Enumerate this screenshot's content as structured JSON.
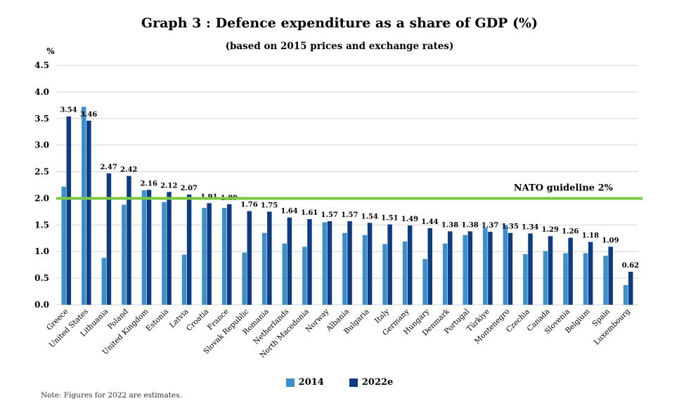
{
  "chart_data": {
    "type": "bar",
    "title": "Graph 3 : Defence expenditure as a share of GDP (%)",
    "subtitle": "(based on 2015 prices and exchange rates)",
    "ylabel": "%",
    "ylim": [
      0,
      4.5
    ],
    "yticks": [
      "0.0",
      "0.5",
      "1.0",
      "1.5",
      "2.0",
      "2.5",
      "3.0",
      "3.5",
      "4.0",
      "4.5"
    ],
    "grid": true,
    "categories": [
      "Greece",
      "United States",
      "Lithuania",
      "Poland",
      "United Kingdom",
      "Estonia",
      "Latvia",
      "Croatia",
      "France",
      "Slovak Republic",
      "Romania",
      "Netherlands",
      "North Macedonia",
      "Norway",
      "Albania",
      "Bulgaria",
      "Italy",
      "Germany",
      "Hungary",
      "Denmark",
      "Portugal",
      "Türkiye",
      "Montenegro",
      "Czechia",
      "Canada",
      "Slovenia",
      "Belgium",
      "Spain",
      "Luxembourg"
    ],
    "series": [
      {
        "name": "2014",
        "color": "#3d8fc9",
        "values": [
          2.22,
          3.72,
          0.88,
          1.88,
          2.15,
          1.93,
          0.94,
          1.82,
          1.82,
          0.98,
          1.35,
          1.15,
          1.09,
          1.55,
          1.35,
          1.31,
          1.14,
          1.19,
          0.86,
          1.15,
          1.31,
          1.45,
          1.5,
          0.95,
          1.01,
          0.97,
          0.97,
          0.92,
          0.37
        ]
      },
      {
        "name": "2022e",
        "color": "#0d3d80",
        "values": [
          3.54,
          3.46,
          2.47,
          2.42,
          2.16,
          2.12,
          2.07,
          1.91,
          1.89,
          1.76,
          1.75,
          1.64,
          1.61,
          1.57,
          1.57,
          1.54,
          1.51,
          1.49,
          1.44,
          1.38,
          1.38,
          1.37,
          1.35,
          1.34,
          1.29,
          1.26,
          1.18,
          1.09,
          0.62
        ],
        "labels": [
          "3.54",
          "3.46",
          "2.47",
          "2.42",
          "2.16",
          "2.12",
          "2.07",
          "1.91",
          "1.89",
          "1.76",
          "1.75",
          "1.64",
          "1.61",
          "1.57",
          "1.57",
          "1.54",
          "1.51",
          "1.49",
          "1.44",
          "1.38",
          "1.38",
          "1.37",
          "1.35",
          "1.34",
          "1.29",
          "1.26",
          "1.18",
          "1.09",
          "0.62"
        ]
      }
    ],
    "reference_line": {
      "label": "NATO guideline 2%",
      "value": 2.0,
      "color": "#7ac943"
    },
    "legend_position": "bottom"
  },
  "note": "Note: Figures for 2022 are estimates."
}
